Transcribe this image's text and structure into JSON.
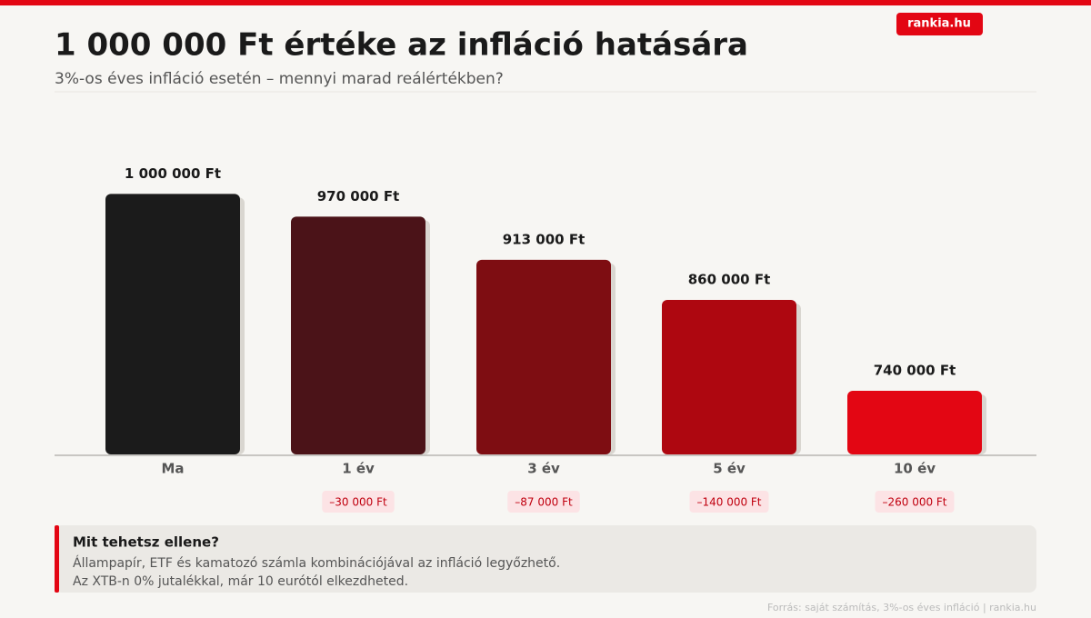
{
  "brand": "rankia.hu",
  "chart_data": {
    "type": "bar",
    "title": "1 000 000 Ft értéke az infláció hatására",
    "subtitle": "3%-os éves infláció esetén – mennyi marad reálértékben?",
    "categories": [
      "Ma",
      "1 év",
      "3 év",
      "5 év",
      "10 év"
    ],
    "values": [
      1000000,
      970000,
      913000,
      860000,
      740000
    ],
    "value_labels": [
      "1 000 000 Ft",
      "970 000 Ft",
      "913 000 Ft",
      "860 000 Ft",
      "740 000 Ft"
    ],
    "differences": [
      null,
      -30000,
      -87000,
      -140000,
      -260000
    ],
    "difference_labels": [
      null,
      "–30 000 Ft",
      "–87 000 Ft",
      "–140 000 Ft",
      "–260 000 Ft"
    ],
    "colors": [
      "#1b1b1b",
      "#4b1318",
      "#7e0d12",
      "#ae0710",
      "#e30613"
    ],
    "ylim": [
      656000,
      1064000
    ]
  },
  "callout": {
    "title": "Mit tehetsz ellene?",
    "lines": [
      "Állampapír, ETF és kamatozó számla kombinációjával az infláció legyőzhető.",
      "Az XTB-n 0% jutalékkal, már 10 eurótól elkezdheted."
    ]
  },
  "footer": "Forrás: saját számítás, 3%-os éves infláció | rankia.hu"
}
